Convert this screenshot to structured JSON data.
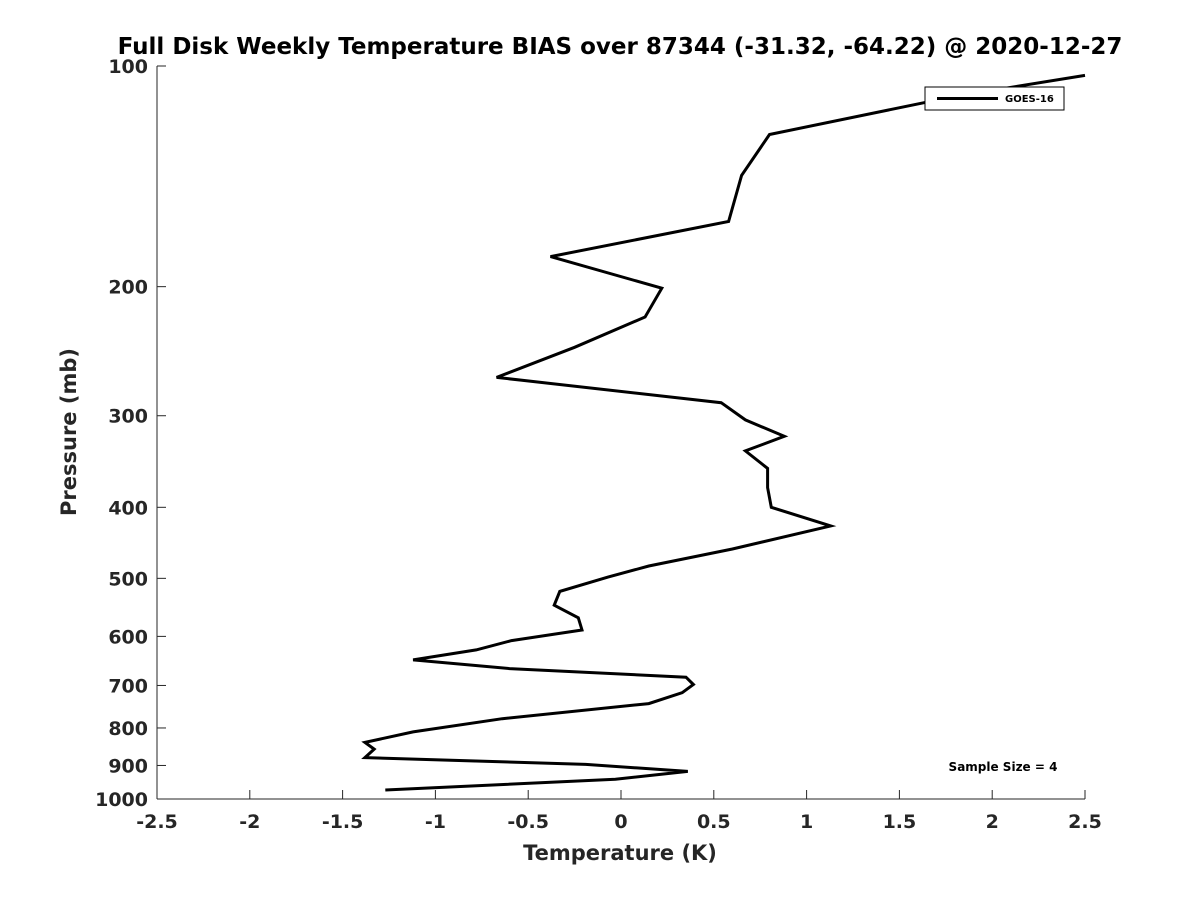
{
  "chart_data": {
    "type": "line",
    "title": "Full Disk Weekly Temperature BIAS over 87344 (-31.32, -64.22) @ 2020-12-27",
    "xlabel": "Temperature (K)",
    "ylabel": "Pressure (mb)",
    "xlim": [
      -2.5,
      2.5
    ],
    "ylim": [
      100,
      1000
    ],
    "y_scale": "log",
    "y_reversed": true,
    "grid": false,
    "x_ticks": [
      -2.5,
      -2,
      -1.5,
      -1,
      -0.5,
      0,
      0.5,
      1,
      1.5,
      2,
      2.5
    ],
    "x_tick_labels": [
      "-2.5",
      "-2",
      "-1.5",
      "-1",
      "-0.5",
      "0",
      "0.5",
      "1",
      "1.5",
      "2",
      "2.5"
    ],
    "y_ticks": [
      100,
      200,
      300,
      400,
      500,
      600,
      700,
      800,
      900,
      1000
    ],
    "y_tick_labels": [
      "100",
      "200",
      "300",
      "400",
      "500",
      "600",
      "700",
      "800",
      "900",
      "1000"
    ],
    "legend": {
      "position": "top-right",
      "entries": [
        "GOES-16"
      ]
    },
    "annotation": "Sample Size = 4",
    "series": [
      {
        "name": "GOES-16",
        "color": "#000000",
        "points": [
          [
            2.5,
            103
          ],
          [
            1.8,
            110
          ],
          [
            0.8,
            124
          ],
          [
            0.65,
            141
          ],
          [
            0.58,
            163
          ],
          [
            -0.38,
            182
          ],
          [
            0.22,
            201
          ],
          [
            0.13,
            220
          ],
          [
            -0.25,
            242
          ],
          [
            -0.67,
            266
          ],
          [
            0.54,
            288
          ],
          [
            0.67,
            304
          ],
          [
            0.88,
            320
          ],
          [
            0.67,
            335
          ],
          [
            0.79,
            354
          ],
          [
            0.79,
            376
          ],
          [
            0.81,
            400
          ],
          [
            1.13,
            424
          ],
          [
            0.6,
            456
          ],
          [
            0.15,
            481
          ],
          [
            -0.07,
            498
          ],
          [
            -0.33,
            521
          ],
          [
            -0.36,
            544
          ],
          [
            -0.23,
            566
          ],
          [
            -0.21,
            588
          ],
          [
            -0.59,
            608
          ],
          [
            -0.78,
            626
          ],
          [
            -1.12,
            646
          ],
          [
            -0.6,
            664
          ],
          [
            0.35,
            682
          ],
          [
            0.39,
            698
          ],
          [
            0.33,
            716
          ],
          [
            0.15,
            741
          ],
          [
            -0.64,
            777
          ],
          [
            -1.12,
            810
          ],
          [
            -1.38,
            837
          ],
          [
            -1.33,
            855
          ],
          [
            -1.38,
            878
          ],
          [
            -0.19,
            897
          ],
          [
            0.36,
            917
          ],
          [
            -0.03,
            940
          ],
          [
            -1.27,
            972
          ]
        ]
      }
    ]
  }
}
